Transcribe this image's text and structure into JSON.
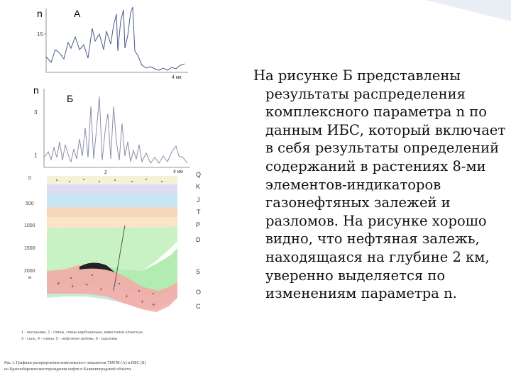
{
  "figure": {
    "panel_a": {
      "label": "А",
      "axis_label": "n",
      "y_tick": "15",
      "x_tick": "4 км"
    },
    "panel_b": {
      "label": "Б",
      "axis_label": "n",
      "y_ticks": [
        "3",
        "1"
      ],
      "x_ticks": [
        "2",
        "4 км"
      ]
    },
    "section": {
      "depth_ticks": [
        "0",
        "500",
        "1000",
        "1500",
        "2000"
      ],
      "depth_unit": "м",
      "layers": [
        "Q",
        "K",
        "J",
        "T",
        "P",
        "D",
        "S",
        "O",
        "C"
      ],
      "colors": {
        "q": "#f4f1d6",
        "k": "#dcdcf4",
        "j": "#c9e6f6",
        "t": "#f5d6b8",
        "p": "#fbe3c8",
        "d": "#c9f2c4",
        "s": "#b3ecb3",
        "o": "#c6ecd6",
        "c": "#f6a8a8"
      }
    },
    "legend_line1": "1 - песчаники, 2 - глины, глины карбонатные, известняки слоистые,",
    "legend_line2": "3 - соль, 4 - глины, 5 - нефтяная залежь, 6 - разломы",
    "caption_line1": "Рис.1. Графики распределения комплексного показателя ТМГМ (А) и ИБС (Б)",
    "caption_line2": "на Красноборском месторождении нефти в Калининградской области."
  },
  "slide_text": "На рисунке Б представлены результаты распределения комплексного параметра n по данным ИБС, который включает в себя результаты определений содержаний в растениях 8-ми элементов-индикаторов газонефтяных залежей и разломов. На рисунке хорошо видно, что нефтяная залежь, находящаяся на глубине 2 км, уверенно выделяется по изменениям параметра n."
}
